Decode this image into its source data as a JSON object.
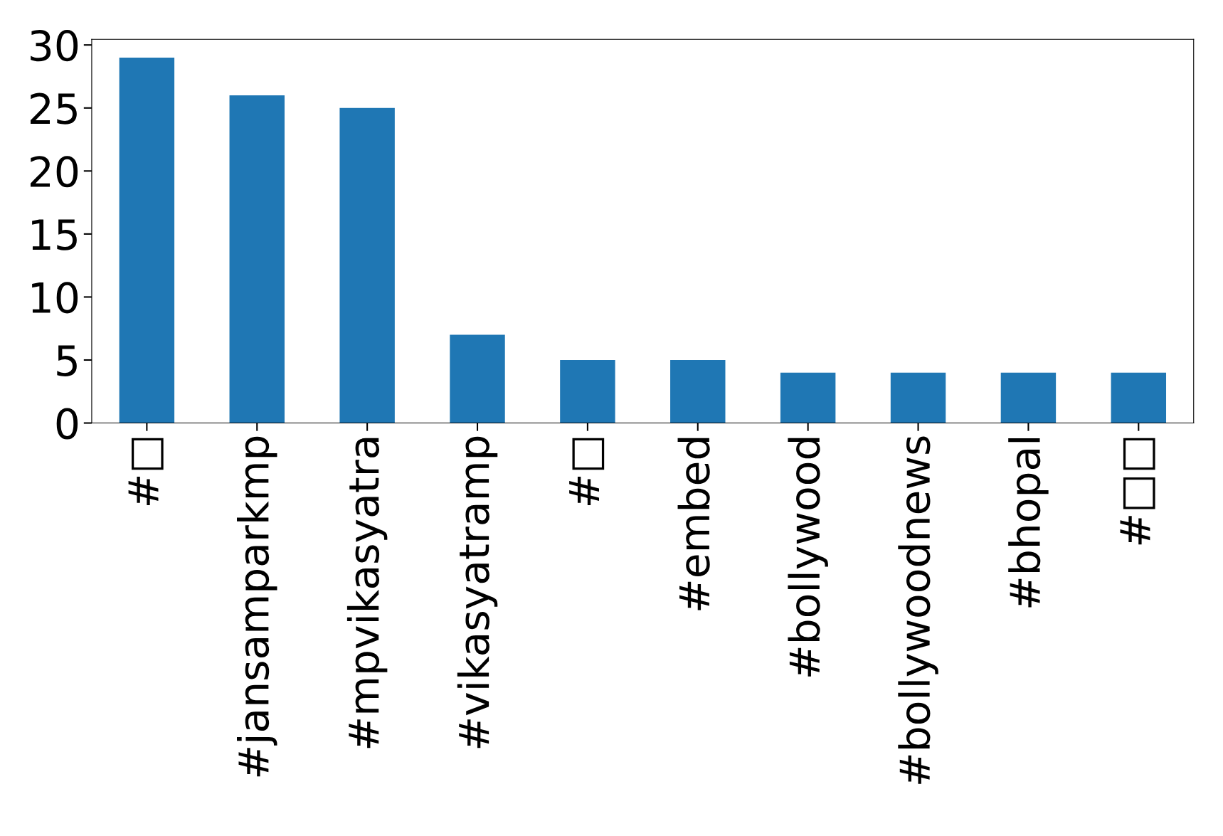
{
  "chart_data": {
    "type": "bar",
    "categories": [
      "#□",
      "#jansamparkmp",
      "#mpvikasyatra",
      "#vikasyatramp",
      "#□",
      "#embed",
      "#bollywood",
      "#bollywoodnews",
      "#bhopal",
      "#□□"
    ],
    "values": [
      29,
      26,
      25,
      7,
      5,
      5,
      4,
      4,
      4,
      4
    ],
    "color": "#1f77b4",
    "ylim": [
      0,
      30.45
    ],
    "yticks": [
      0,
      5,
      10,
      15,
      20,
      25,
      30
    ],
    "grid": false,
    "legend": false
  }
}
